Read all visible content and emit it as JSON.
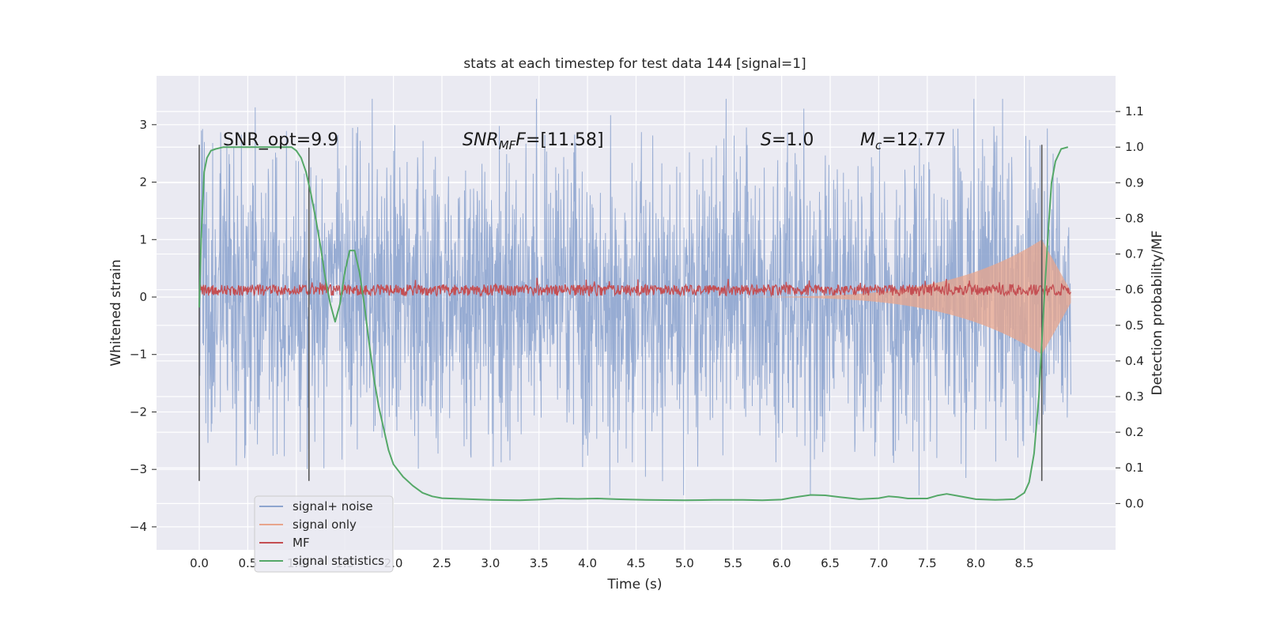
{
  "chart_data": {
    "type": "line",
    "title": "stats at each timestep for test data 144 [signal=1]",
    "xlabel": "Time (s)",
    "ylabel_left": "Whitened strain",
    "ylabel_right": "Detection probability/MF",
    "xlim": [
      -0.44,
      9.44
    ],
    "ylim_left": [
      -4.4,
      3.85
    ],
    "ylim_right": [
      -0.13,
      1.2
    ],
    "x_ticks": [
      0.0,
      0.5,
      1.0,
      1.5,
      2.0,
      2.5,
      3.0,
      3.5,
      4.0,
      4.5,
      5.0,
      5.5,
      6.0,
      6.5,
      7.0,
      7.5,
      8.0,
      8.5
    ],
    "x_tick_labels": [
      "0.0",
      "0.5",
      "1.0",
      "1.5",
      "2.0",
      "2.5",
      "3.0",
      "3.5",
      "4.0",
      "4.5",
      "5.0",
      "5.5",
      "6.0",
      "6.5",
      "7.0",
      "7.5",
      "8.0",
      "8.5"
    ],
    "y_left_ticks": [
      3,
      2,
      1,
      0,
      -1,
      -2,
      -3,
      -4
    ],
    "y_left_tick_labels": [
      "3",
      "2",
      "1",
      "0",
      "−1",
      "−2",
      "−3",
      "−4"
    ],
    "y_right_ticks": [
      1.1,
      1.0,
      0.9,
      0.8,
      0.7,
      0.6,
      0.5,
      0.4,
      0.3,
      0.2,
      0.1,
      0.0
    ],
    "y_right_tick_labels": [
      "1.1",
      "1.0",
      "0.9",
      "0.8",
      "0.7",
      "0.6",
      "0.5",
      "0.4",
      "0.3",
      "0.2",
      "0.1",
      "0.0"
    ],
    "grid": true,
    "legend_placement": "lower-left",
    "annotations": {
      "snr_opt": "SNR_opt=9.9",
      "snr_mf_base": "SNR",
      "snr_mf_sub": "MF",
      "snr_mf_tail": "=[11.58]",
      "s_label": "S",
      "s_value": "=1.0",
      "mc_base": "M",
      "mc_sub": "c",
      "mc_value": "=12.77"
    },
    "vertical_markers": [
      {
        "x": 0.0,
        "y_top_left": 2.65,
        "y_bottom_left": -3.2
      },
      {
        "x": 1.13,
        "y_top_left": 2.6,
        "y_bottom_left": -3.2
      },
      {
        "x": 8.68,
        "y_top_left": 2.65,
        "y_bottom_left": -3.2
      }
    ],
    "noise_x_range": [
      0.0,
      8.98
    ],
    "noise_amplitude_typical": 1.5,
    "noise_amplitude_max": 3.45,
    "mf_baseline": 0.12,
    "mf_amplitude": 0.12,
    "chirp": {
      "t_start": 5.0,
      "t_merger": 8.68,
      "amp_max": 1.0
    },
    "series": [
      {
        "name": "signal+ noise",
        "color": "#8ea5cf",
        "axis": "left"
      },
      {
        "name": "signal only",
        "color": "#e8a58c",
        "axis": "left"
      },
      {
        "name": "MF",
        "color": "#c44e52",
        "axis": "left"
      },
      {
        "name": "signal statistics",
        "color": "#55a868",
        "axis": "right",
        "x": [
          0.0,
          0.02,
          0.05,
          0.08,
          0.12,
          0.17,
          0.25,
          0.4,
          0.6,
          0.8,
          0.95,
          1.0,
          1.05,
          1.1,
          1.15,
          1.2,
          1.25,
          1.3,
          1.35,
          1.4,
          1.45,
          1.5,
          1.55,
          1.6,
          1.65,
          1.7,
          1.75,
          1.8,
          1.85,
          1.9,
          1.95,
          2.0,
          2.1,
          2.2,
          2.3,
          2.4,
          2.5,
          2.7,
          3.0,
          3.3,
          3.5,
          3.7,
          3.9,
          4.1,
          4.3,
          4.6,
          5.0,
          5.3,
          5.6,
          5.8,
          6.0,
          6.1,
          6.2,
          6.3,
          6.45,
          6.6,
          6.8,
          7.0,
          7.1,
          7.2,
          7.3,
          7.5,
          7.6,
          7.7,
          7.8,
          8.0,
          8.2,
          8.4,
          8.5,
          8.55,
          8.6,
          8.65,
          8.7,
          8.75,
          8.78,
          8.82,
          8.88,
          8.95
        ],
        "y": [
          0.55,
          0.75,
          0.93,
          0.97,
          0.99,
          0.995,
          1.0,
          1.0,
          1.0,
          1.0,
          1.0,
          0.99,
          0.97,
          0.93,
          0.87,
          0.8,
          0.72,
          0.63,
          0.56,
          0.51,
          0.56,
          0.65,
          0.71,
          0.71,
          0.65,
          0.56,
          0.45,
          0.35,
          0.27,
          0.21,
          0.15,
          0.11,
          0.075,
          0.05,
          0.03,
          0.02,
          0.015,
          0.013,
          0.01,
          0.009,
          0.011,
          0.014,
          0.013,
          0.014,
          0.012,
          0.01,
          0.009,
          0.01,
          0.01,
          0.009,
          0.011,
          0.016,
          0.02,
          0.024,
          0.023,
          0.018,
          0.012,
          0.015,
          0.02,
          0.018,
          0.014,
          0.014,
          0.022,
          0.027,
          0.022,
          0.012,
          0.01,
          0.012,
          0.03,
          0.06,
          0.14,
          0.3,
          0.55,
          0.78,
          0.9,
          0.96,
          0.995,
          1.0
        ]
      }
    ]
  }
}
